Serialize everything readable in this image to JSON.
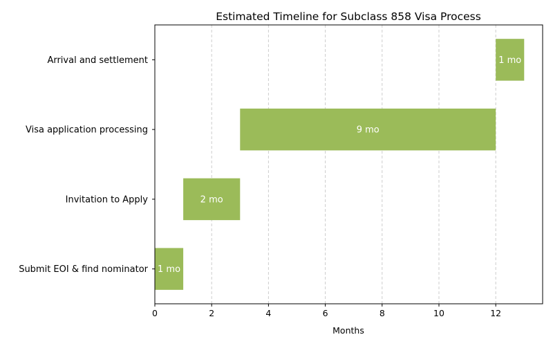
{
  "chart_data": {
    "type": "bar",
    "orientation": "horizontal",
    "title": "Estimated Timeline for Subclass 858 Visa Process",
    "xlabel": "Months",
    "ylabel": "",
    "xlim": [
      0,
      13.65
    ],
    "xticks": [
      "0",
      "2",
      "4",
      "6",
      "8",
      "10",
      "12"
    ],
    "grid": "vertical dashed",
    "bar_color": "#9bbb59",
    "tasks": [
      {
        "name": "Submit EOI & find nominator",
        "start": 0,
        "duration": 1,
        "label": "1 mo"
      },
      {
        "name": "Invitation to Apply",
        "start": 1,
        "duration": 2,
        "label": "2 mo"
      },
      {
        "name": "Visa application processing",
        "start": 3,
        "duration": 9,
        "label": "9 mo"
      },
      {
        "name": "Arrival and settlement",
        "start": 12,
        "duration": 1,
        "label": "1 mo"
      }
    ]
  }
}
